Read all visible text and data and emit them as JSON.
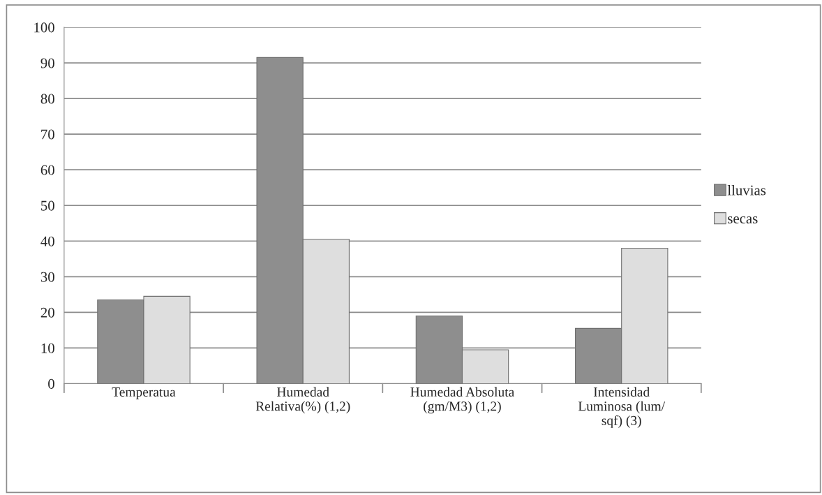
{
  "chart_data": {
    "type": "bar",
    "categories": [
      "Temperatua",
      "Humedad\nRelativa(%) (1,2)",
      "Humedad Absoluta\n(gm/M3) (1,2)",
      "Intensidad\nLuminosa (lum/\nsqf) (3)"
    ],
    "series": [
      {
        "name": "lluvias",
        "color": "#8e8e8e",
        "values": [
          23.5,
          91.5,
          19,
          15.5
        ]
      },
      {
        "name": "secas",
        "color": "#dedede",
        "values": [
          24.5,
          40.5,
          9.5,
          38
        ]
      }
    ],
    "ylim": [
      0,
      100
    ],
    "yticks": [
      0,
      10,
      20,
      30,
      40,
      50,
      60,
      70,
      80,
      90,
      100
    ],
    "grid": "y",
    "legend": "right"
  }
}
